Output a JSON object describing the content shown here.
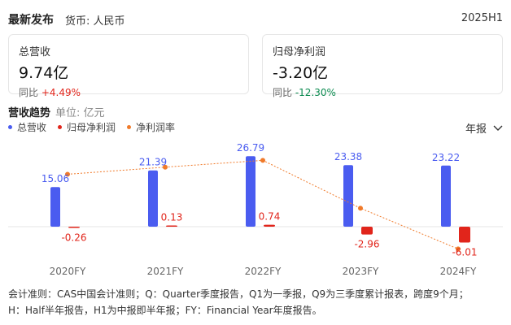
{
  "header": {
    "title": "最新发布",
    "currency": "货币: 人民币",
    "period": "2025H1"
  },
  "cards": [
    {
      "label": "总营收",
      "value": "9.74亿",
      "yoy_prefix": "同比",
      "yoy": "+4.49%",
      "trend": "up"
    },
    {
      "label": "归母净利润",
      "value": "-3.20亿",
      "yoy_prefix": "同比",
      "yoy": "-12.30%",
      "trend": "down"
    }
  ],
  "section": {
    "title": "营收趋势",
    "unit": "单位: 亿元"
  },
  "legend": [
    {
      "label": "总营收",
      "color": "#4a5cf0"
    },
    {
      "label": "归母净利润",
      "color": "#e1251b"
    },
    {
      "label": "净利润率",
      "color": "#f07a2a"
    }
  ],
  "period_select": {
    "label": "年报",
    "icon": "chevron-down-icon"
  },
  "chart_data": {
    "type": "bar",
    "categories": [
      "2020FY",
      "2021FY",
      "2022FY",
      "2023FY",
      "2024FY"
    ],
    "series": [
      {
        "name": "总营收",
        "values": [
          15.06,
          21.39,
          26.79,
          23.38,
          23.22
        ],
        "color": "#4a5cf0"
      },
      {
        "name": "归母净利润",
        "values": [
          -0.26,
          0.13,
          0.74,
          -2.96,
          -6.01
        ],
        "color": "#e1251b"
      },
      {
        "name": "净利润率",
        "type": "line",
        "values": [
          -1.7,
          0.6,
          2.8,
          -12.7,
          -25.9
        ],
        "color": "#f07a2a"
      }
    ],
    "grid": false
  },
  "footnote": {
    "line1": "会计准则：CAS中国会计准则；Q：Quarter季度报告，Q1为一季报，Q9为三季度累计报表，跨度9个月；",
    "line2": "H：Half半年报告，H1为中报即半年报；FY：Financial Year年度报告。"
  }
}
